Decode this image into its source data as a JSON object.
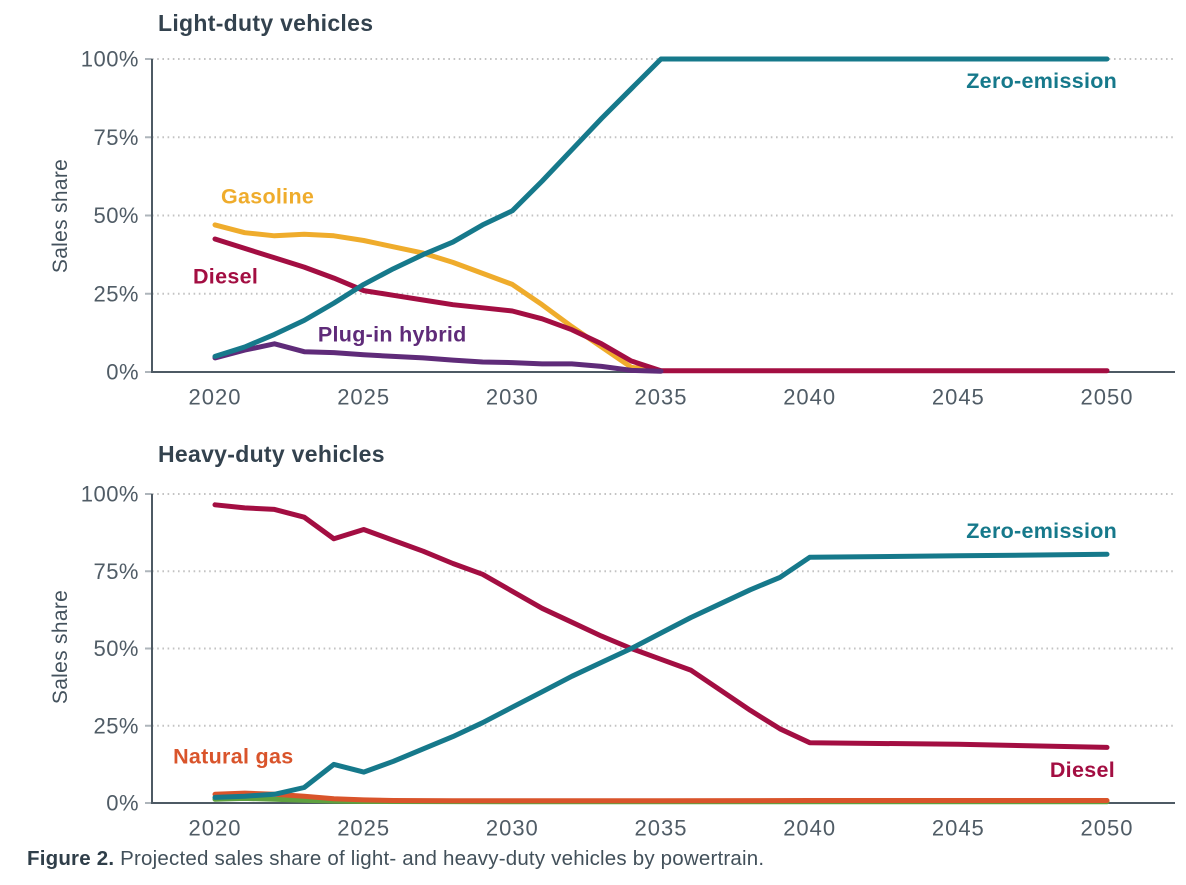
{
  "figure": {
    "caption_label": "Figure 2.",
    "caption_text": "Projected sales share of light- and heavy-duty vehicles by powertrain."
  },
  "colors": {
    "teal": "#16798B",
    "gold": "#EFAC2C",
    "crimson": "#A30E42",
    "purple": "#5F2B79",
    "orange": "#D9542B",
    "green": "#5EA13F",
    "axis": "#4E5A64",
    "grid": "#C3C3C3",
    "tick_mark": "#AEB5BB",
    "tick_text": "#505C66",
    "title_text": "#33424E",
    "caption_text": "#42505A"
  },
  "chart_data": [
    {
      "type": "line",
      "title": "Light-duty vehicles",
      "ylabel": "Sales share",
      "xlabel": "",
      "ylim": [
        0,
        100
      ],
      "xlim": [
        2020,
        2050
      ],
      "grid": "horizontal-dotted",
      "legend_position": "inline-labels",
      "yticks": [
        {
          "value": 0,
          "label": "0%"
        },
        {
          "value": 25,
          "label": "25%"
        },
        {
          "value": 50,
          "label": "50%"
        },
        {
          "value": 75,
          "label": "75%"
        },
        {
          "value": 100,
          "label": "100%"
        }
      ],
      "xticks": [
        {
          "value": 2020,
          "label": "2020"
        },
        {
          "value": 2025,
          "label": "2025"
        },
        {
          "value": 2030,
          "label": "2030"
        },
        {
          "value": 2035,
          "label": "2035"
        },
        {
          "value": 2040,
          "label": "2040"
        },
        {
          "value": 2045,
          "label": "2045"
        },
        {
          "value": 2050,
          "label": "2050"
        }
      ],
      "series": [
        {
          "name": "Gasoline",
          "color_key": "gold",
          "label": {
            "text": "Gasoline",
            "year": 2020.2,
            "value": 56,
            "anchor": "start"
          },
          "points": [
            [
              2020,
              47
            ],
            [
              2021,
              44.5
            ],
            [
              2022,
              43.5
            ],
            [
              2023,
              44
            ],
            [
              2024,
              43.5
            ],
            [
              2025,
              42
            ],
            [
              2026,
              40
            ],
            [
              2027,
              38
            ],
            [
              2028,
              35
            ],
            [
              2029,
              31.5
            ],
            [
              2030,
              28
            ],
            [
              2031,
              21.5
            ],
            [
              2032,
              14.5
            ],
            [
              2033,
              8
            ],
            [
              2034,
              1.5
            ],
            [
              2035,
              0.4
            ]
          ]
        },
        {
          "name": "Diesel",
          "color_key": "crimson",
          "label": {
            "text": "Diesel",
            "year": 2019.26,
            "value": 30.5,
            "anchor": "start"
          },
          "points": [
            [
              2020,
              42.5
            ],
            [
              2021,
              39.5
            ],
            [
              2022,
              36.5
            ],
            [
              2023,
              33.5
            ],
            [
              2024,
              30
            ],
            [
              2025,
              26
            ],
            [
              2026,
              24.5
            ],
            [
              2027,
              23
            ],
            [
              2028,
              21.5
            ],
            [
              2029,
              20.5
            ],
            [
              2030,
              19.5
            ],
            [
              2031,
              17
            ],
            [
              2032,
              13.5
            ],
            [
              2033,
              9
            ],
            [
              2034,
              3.5
            ],
            [
              2035,
              0.4
            ],
            [
              2050,
              0.4
            ]
          ]
        },
        {
          "name": "Plug-in hybrid",
          "color_key": "purple",
          "label": {
            "text": "Plug-in hybrid",
            "year": 2023.46,
            "value": 12,
            "anchor": "start"
          },
          "points": [
            [
              2020,
              4.5
            ],
            [
              2021,
              7
            ],
            [
              2022,
              9
            ],
            [
              2023,
              6.5
            ],
            [
              2024,
              6.2
            ],
            [
              2025,
              5.5
            ],
            [
              2026,
              5
            ],
            [
              2027,
              4.5
            ],
            [
              2028,
              3.8
            ],
            [
              2029,
              3.2
            ],
            [
              2030,
              3
            ],
            [
              2031,
              2.6
            ],
            [
              2032,
              2.6
            ],
            [
              2033,
              1.8
            ],
            [
              2034,
              0.5
            ],
            [
              2035,
              0.25
            ]
          ]
        },
        {
          "name": "Zero-emission",
          "color_key": "teal",
          "label": {
            "text": "Zero-emission",
            "year": 2050.34,
            "value": 93,
            "anchor": "end"
          },
          "points": [
            [
              2020,
              5
            ],
            [
              2021,
              8
            ],
            [
              2022,
              12
            ],
            [
              2023,
              16.5
            ],
            [
              2024,
              22
            ],
            [
              2025,
              28
            ],
            [
              2026,
              33
            ],
            [
              2027,
              37.5
            ],
            [
              2028,
              41.5
            ],
            [
              2029,
              47
            ],
            [
              2030,
              51.5
            ],
            [
              2031,
              61
            ],
            [
              2032,
              71
            ],
            [
              2033,
              81
            ],
            [
              2034,
              90.5
            ],
            [
              2035,
              100
            ],
            [
              2050,
              100
            ]
          ]
        }
      ]
    },
    {
      "type": "line",
      "title": "Heavy-duty vehicles",
      "ylabel": "Sales share",
      "xlabel": "",
      "ylim": [
        0,
        100
      ],
      "xlim": [
        2020,
        2050
      ],
      "grid": "horizontal-dotted",
      "legend_position": "inline-labels",
      "yticks": [
        {
          "value": 0,
          "label": "0%"
        },
        {
          "value": 25,
          "label": "25%"
        },
        {
          "value": 50,
          "label": "50%"
        },
        {
          "value": 75,
          "label": "75%"
        },
        {
          "value": 100,
          "label": "100%"
        }
      ],
      "xticks": [
        {
          "value": 2020,
          "label": "2020"
        },
        {
          "value": 2025,
          "label": "2025"
        },
        {
          "value": 2030,
          "label": "2030"
        },
        {
          "value": 2035,
          "label": "2035"
        },
        {
          "value": 2040,
          "label": "2040"
        },
        {
          "value": 2045,
          "label": "2045"
        },
        {
          "value": 2050,
          "label": "2050"
        }
      ],
      "series": [
        {
          "name": "unlabeled-green",
          "color_key": "green",
          "points": [
            [
              2020,
              1.2
            ],
            [
              2021,
              1.5
            ],
            [
              2022,
              1.2
            ],
            [
              2023,
              0.9
            ],
            [
              2024,
              0.6
            ],
            [
              2025,
              0.5
            ],
            [
              2030,
              0.4
            ],
            [
              2040,
              0.4
            ],
            [
              2050,
              0.4
            ]
          ]
        },
        {
          "name": "Natural gas",
          "color_key": "orange",
          "label": {
            "text": "Natural gas",
            "year": 2018.59,
            "value": 15,
            "anchor": "start"
          },
          "points": [
            [
              2020,
              2.8
            ],
            [
              2021,
              3.2
            ],
            [
              2022,
              2.8
            ],
            [
              2023,
              2.2
            ],
            [
              2024,
              1.4
            ],
            [
              2025,
              1
            ],
            [
              2026,
              0.8
            ],
            [
              2028,
              0.7
            ],
            [
              2030,
              0.7
            ],
            [
              2035,
              0.7
            ],
            [
              2040,
              0.8
            ],
            [
              2045,
              0.8
            ],
            [
              2050,
              0.8
            ]
          ]
        },
        {
          "name": "Diesel",
          "color_key": "crimson",
          "label": {
            "text": "Diesel",
            "year": 2050.27,
            "value": 10.7,
            "anchor": "end"
          },
          "points": [
            [
              2020,
              96.5
            ],
            [
              2021,
              95.5
            ],
            [
              2022,
              95
            ],
            [
              2023,
              92.5
            ],
            [
              2024,
              85.5
            ],
            [
              2025,
              88.5
            ],
            [
              2026,
              85
            ],
            [
              2027,
              81.5
            ],
            [
              2028,
              77.5
            ],
            [
              2029,
              74
            ],
            [
              2030,
              68.5
            ],
            [
              2031,
              63
            ],
            [
              2032,
              58.5
            ],
            [
              2033,
              54
            ],
            [
              2034,
              50
            ],
            [
              2035,
              46.5
            ],
            [
              2036,
              43
            ],
            [
              2037,
              36.5
            ],
            [
              2038,
              30
            ],
            [
              2039,
              24
            ],
            [
              2040,
              19.5
            ],
            [
              2045,
              19
            ],
            [
              2050,
              18
            ]
          ]
        },
        {
          "name": "Zero-emission",
          "color_key": "teal",
          "label": {
            "text": "Zero-emission",
            "year": 2050.34,
            "value": 88,
            "anchor": "end"
          },
          "points": [
            [
              2020,
              1.8
            ],
            [
              2021,
              2.2
            ],
            [
              2022,
              2.8
            ],
            [
              2023,
              5
            ],
            [
              2024,
              12.5
            ],
            [
              2025,
              10
            ],
            [
              2026,
              13.5
            ],
            [
              2027,
              17.5
            ],
            [
              2028,
              21.5
            ],
            [
              2029,
              26
            ],
            [
              2030,
              31
            ],
            [
              2031,
              36
            ],
            [
              2032,
              41
            ],
            [
              2033,
              45.5
            ],
            [
              2034,
              50
            ],
            [
              2035,
              55
            ],
            [
              2036,
              60
            ],
            [
              2037,
              64.5
            ],
            [
              2038,
              69
            ],
            [
              2039,
              73
            ],
            [
              2040,
              79.5
            ],
            [
              2045,
              80
            ],
            [
              2050,
              80.5
            ]
          ]
        }
      ]
    }
  ]
}
